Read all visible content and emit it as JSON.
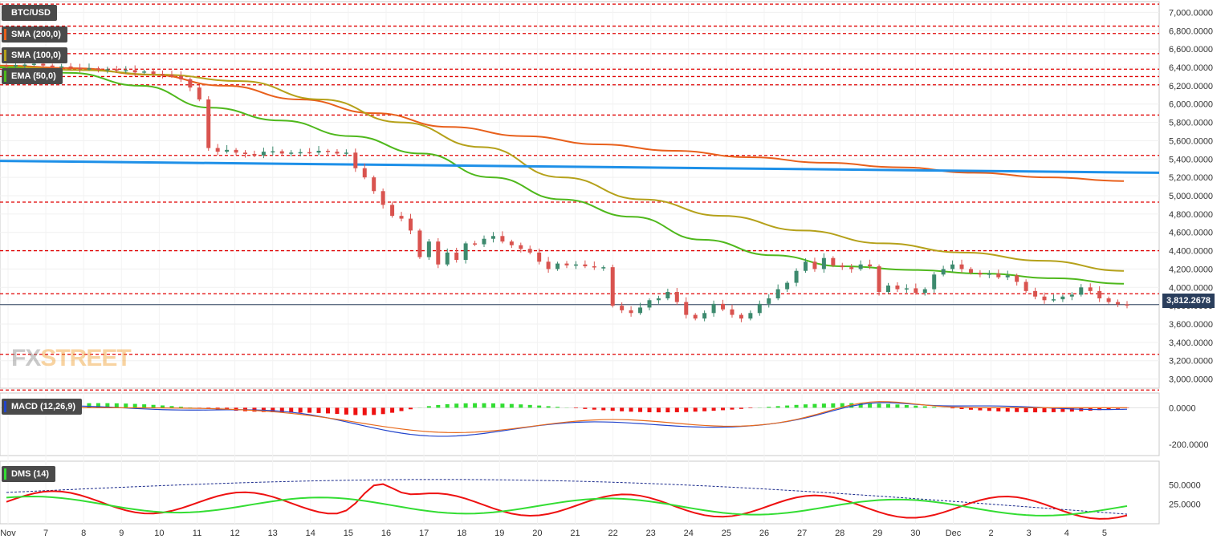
{
  "symbol": "BTC/USD",
  "indicators": {
    "sma200": {
      "label": "SMA (200,0)",
      "color": "#e8601c"
    },
    "sma100": {
      "label": "SMA (100,0)",
      "color": "#b5a11a"
    },
    "ema50": {
      "label": "EMA (50,0)",
      "color": "#4fb81c"
    }
  },
  "macd_label": "MACD (12,26,9)",
  "dms_label": "DMS (14)",
  "watermark": {
    "fx": "FX",
    "street": "STREET"
  },
  "current_price": "3,812.2678",
  "colors": {
    "up": "#3d8a6e",
    "down": "#d9534f",
    "resistance": "#e00000",
    "trendline": "#1e90e8",
    "panel_border": "#c8c8c8"
  },
  "chart_data": {
    "type": "candlestick",
    "x_labels": [
      "Nov",
      "7",
      "8",
      "9",
      "10",
      "11",
      "12",
      "13",
      "14",
      "15",
      "16",
      "17",
      "18",
      "19",
      "20",
      "21",
      "22",
      "23",
      "24",
      "25",
      "26",
      "27",
      "28",
      "29",
      "30",
      "Dec",
      "2",
      "3",
      "4",
      "5"
    ],
    "price_axis": [
      "7,000.0000",
      "6,800.0000",
      "6,600.0000",
      "6,400.0000",
      "6,200.0000",
      "6,000.0000",
      "5,800.0000",
      "5,600.0000",
      "5,400.0000",
      "5,200.0000",
      "5,000.0000",
      "4,800.0000",
      "4,600.0000",
      "4,400.0000",
      "4,200.0000",
      "4,000.0000",
      "3,800.0000",
      "3,600.0000",
      "3,400.0000",
      "3,200.0000",
      "3,000.0000"
    ],
    "ylim": [
      2900,
      7100
    ],
    "resistance_levels": [
      7090,
      6850,
      6770,
      6550,
      6380,
      6300,
      6210,
      5880,
      5440,
      4930,
      4400,
      3930,
      3270,
      2880
    ],
    "trendline": {
      "from": 5380,
      "to": 5250
    },
    "closes": [
      6410,
      6425,
      6430,
      6440,
      6420,
      6405,
      6410,
      6395,
      6385,
      6390,
      6375,
      6380,
      6365,
      6370,
      6345,
      6355,
      6330,
      6320,
      6305,
      6270,
      6180,
      6050,
      5520,
      5480,
      5500,
      5470,
      5455,
      5440,
      5480,
      5485,
      5460,
      5470,
      5475,
      5470,
      5490,
      5480,
      5460,
      5470,
      5300,
      5200,
      5050,
      4900,
      4780,
      4750,
      4620,
      4330,
      4500,
      4250,
      4380,
      4300,
      4480,
      4470,
      4530,
      4560,
      4500,
      4460,
      4420,
      4380,
      4280,
      4200,
      4260,
      4240,
      4250,
      4230,
      4220,
      4220,
      3800,
      3750,
      3720,
      3780,
      3860,
      3880,
      3950,
      3840,
      3700,
      3660,
      3720,
      3820,
      3760,
      3700,
      3660,
      3720,
      3820,
      3880,
      3980,
      4050,
      4180,
      4280,
      4200,
      4320,
      4240,
      4220,
      4200,
      4250,
      4230,
      3950,
      4020,
      3980,
      3990,
      3940,
      3980,
      4140,
      4200,
      4250,
      4200,
      4160,
      4140,
      4150,
      4110,
      4130,
      4060,
      3960,
      3900,
      3860,
      3870,
      3900,
      3920,
      4000,
      3960,
      3880,
      3840,
      3815,
      3812
    ],
    "sma200": [
      6420,
      6390,
      6320,
      6200,
      6050,
      5900,
      5750,
      5650,
      5560,
      5490,
      5420,
      5360,
      5310,
      5250,
      5200,
      5160
    ],
    "sma100": [
      6410,
      6370,
      6320,
      6250,
      6050,
      5800,
      5530,
      5200,
      4960,
      4780,
      4620,
      4480,
      4380,
      4290,
      4180
    ],
    "ema50": [
      6400,
      6340,
      6200,
      5960,
      5820,
      5650,
      5460,
      5200,
      4960,
      4770,
      4520,
      4350,
      4230,
      4190,
      4150,
      4100,
      4040
    ],
    "macd": {
      "zero_label": "0.0000",
      "low_label": "-200.0000",
      "ylim": [
        -260,
        80
      ]
    },
    "dms": {
      "labels": [
        "50.0000",
        "25.0000"
      ],
      "ylim": [
        0,
        80
      ]
    }
  }
}
